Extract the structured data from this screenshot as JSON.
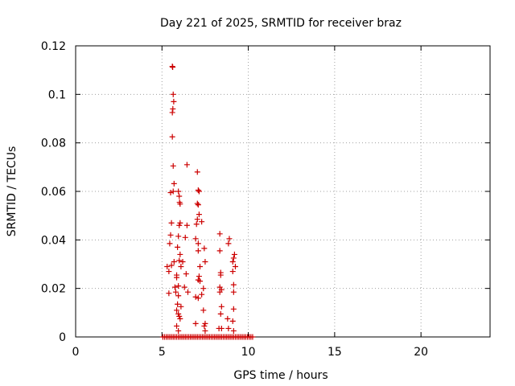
{
  "chart_data": {
    "type": "scatter",
    "title": "Day 221 of 2025, SRMTID for receiver braz",
    "xlabel": "GPS time / hours",
    "ylabel": "SRMTID / TECUs",
    "xlim": [
      0,
      24
    ],
    "ylim": [
      0,
      0.12
    ],
    "x_ticks": [
      0,
      5,
      10,
      15,
      20
    ],
    "x_tick_labels": [
      "0",
      "5",
      "10",
      "15",
      "20"
    ],
    "y_ticks": [
      0,
      0.02,
      0.04,
      0.06,
      0.08,
      0.1,
      0.12
    ],
    "y_tick_labels": [
      "0",
      "0.02",
      "0.04",
      "0.06",
      "0.08",
      "0.1",
      "0.12"
    ],
    "grid": true,
    "marker": "+",
    "color": "#cc0000",
    "series": [
      {
        "name": "SRMTID",
        "points": [
          [
            5.05,
            0
          ],
          [
            5.15,
            0
          ],
          [
            5.25,
            0
          ],
          [
            5.35,
            0
          ],
          [
            5.45,
            0
          ],
          [
            5.55,
            0
          ],
          [
            5.65,
            0
          ],
          [
            5.75,
            0
          ],
          [
            5.85,
            0
          ],
          [
            5.95,
            0
          ],
          [
            6.05,
            0
          ],
          [
            6.15,
            0
          ],
          [
            6.25,
            0
          ],
          [
            6.35,
            0
          ],
          [
            6.45,
            0
          ],
          [
            6.55,
            0
          ],
          [
            6.65,
            0
          ],
          [
            6.75,
            0
          ],
          [
            6.85,
            0
          ],
          [
            6.95,
            0
          ],
          [
            7.05,
            0
          ],
          [
            7.15,
            0
          ],
          [
            7.25,
            0
          ],
          [
            7.35,
            0
          ],
          [
            7.45,
            0
          ],
          [
            7.55,
            0
          ],
          [
            7.65,
            0
          ],
          [
            7.75,
            0
          ],
          [
            7.85,
            0
          ],
          [
            7.95,
            0
          ],
          [
            8.05,
            0
          ],
          [
            8.15,
            0
          ],
          [
            8.25,
            0
          ],
          [
            8.35,
            0
          ],
          [
            8.45,
            0
          ],
          [
            8.55,
            0
          ],
          [
            8.65,
            0
          ],
          [
            8.75,
            0
          ],
          [
            8.85,
            0
          ],
          [
            8.95,
            0
          ],
          [
            9.05,
            0
          ],
          [
            9.15,
            0
          ],
          [
            9.25,
            0
          ],
          [
            9.35,
            0
          ],
          [
            9.45,
            0
          ],
          [
            9.55,
            0
          ],
          [
            9.65,
            0
          ],
          [
            9.75,
            0
          ],
          [
            9.85,
            0
          ],
          [
            9.95,
            0
          ],
          [
            10.05,
            0
          ],
          [
            10.15,
            0
          ],
          [
            10.25,
            0
          ],
          [
            5.6,
            0.1115
          ],
          [
            5.62,
            0.1112
          ],
          [
            5.65,
            0.1
          ],
          [
            5.68,
            0.097
          ],
          [
            5.63,
            0.094
          ],
          [
            5.6,
            0.0925
          ],
          [
            5.6,
            0.0825
          ],
          [
            5.65,
            0.0705
          ],
          [
            5.7,
            0.0632
          ],
          [
            5.5,
            0.0595
          ],
          [
            5.65,
            0.06
          ],
          [
            5.55,
            0.047
          ],
          [
            5.95,
            0.06
          ],
          [
            6.0,
            0.058
          ],
          [
            6.02,
            0.0555
          ],
          [
            6.05,
            0.0548
          ],
          [
            6.05,
            0.047
          ],
          [
            6.0,
            0.046
          ],
          [
            5.5,
            0.042
          ],
          [
            5.45,
            0.0385
          ],
          [
            5.95,
            0.0415
          ],
          [
            5.9,
            0.037
          ],
          [
            6.05,
            0.034
          ],
          [
            6.0,
            0.0315
          ],
          [
            5.7,
            0.031
          ],
          [
            5.55,
            0.0295
          ],
          [
            5.3,
            0.029
          ],
          [
            5.4,
            0.027
          ],
          [
            5.85,
            0.0255
          ],
          [
            5.85,
            0.0245
          ],
          [
            5.95,
            0.021
          ],
          [
            5.75,
            0.0205
          ],
          [
            5.8,
            0.0185
          ],
          [
            5.4,
            0.018
          ],
          [
            5.95,
            0.017
          ],
          [
            5.9,
            0.0135
          ],
          [
            6.1,
            0.0125
          ],
          [
            5.85,
            0.011
          ],
          [
            5.95,
            0.0095
          ],
          [
            6.0,
            0.0085
          ],
          [
            6.05,
            0.0075
          ],
          [
            5.85,
            0.0045
          ],
          [
            5.95,
            0.0025
          ],
          [
            6.45,
            0.071
          ],
          [
            6.45,
            0.046
          ],
          [
            6.35,
            0.041
          ],
          [
            6.3,
            0.0205
          ],
          [
            6.4,
            0.026
          ],
          [
            6.5,
            0.0185
          ],
          [
            6.2,
            0.031
          ],
          [
            6.1,
            0.029
          ],
          [
            7.05,
            0.068
          ],
          [
            7.1,
            0.0605
          ],
          [
            7.15,
            0.06
          ],
          [
            7.05,
            0.055
          ],
          [
            7.1,
            0.0545
          ],
          [
            7.15,
            0.0505
          ],
          [
            7.05,
            0.0485
          ],
          [
            7.3,
            0.0475
          ],
          [
            7.0,
            0.0465
          ],
          [
            7.1,
            0.0385
          ],
          [
            7.1,
            0.0355
          ],
          [
            7.45,
            0.0365
          ],
          [
            6.95,
            0.0405
          ],
          [
            7.5,
            0.031
          ],
          [
            7.2,
            0.029
          ],
          [
            7.15,
            0.025
          ],
          [
            7.1,
            0.0235
          ],
          [
            7.2,
            0.023
          ],
          [
            7.4,
            0.02
          ],
          [
            7.3,
            0.0175
          ],
          [
            6.95,
            0.0165
          ],
          [
            7.1,
            0.016
          ],
          [
            7.4,
            0.011
          ],
          [
            6.95,
            0.0055
          ],
          [
            7.5,
            0.0055
          ],
          [
            7.45,
            0.0045
          ],
          [
            7.5,
            0.0025
          ],
          [
            8.35,
            0.0425
          ],
          [
            8.9,
            0.0405
          ],
          [
            8.85,
            0.0385
          ],
          [
            8.35,
            0.0355
          ],
          [
            9.2,
            0.034
          ],
          [
            9.15,
            0.0325
          ],
          [
            9.1,
            0.031
          ],
          [
            9.25,
            0.029
          ],
          [
            9.1,
            0.027
          ],
          [
            8.4,
            0.0265
          ],
          [
            8.4,
            0.0255
          ],
          [
            8.35,
            0.0205
          ],
          [
            8.45,
            0.0195
          ],
          [
            8.35,
            0.0185
          ],
          [
            9.15,
            0.0215
          ],
          [
            9.15,
            0.0185
          ],
          [
            8.45,
            0.0125
          ],
          [
            9.15,
            0.0115
          ],
          [
            8.4,
            0.0095
          ],
          [
            8.8,
            0.0075
          ],
          [
            9.1,
            0.0065
          ],
          [
            8.3,
            0.0035
          ],
          [
            8.45,
            0.0035
          ],
          [
            8.85,
            0.0035
          ],
          [
            9.15,
            0.0025
          ]
        ]
      }
    ]
  }
}
